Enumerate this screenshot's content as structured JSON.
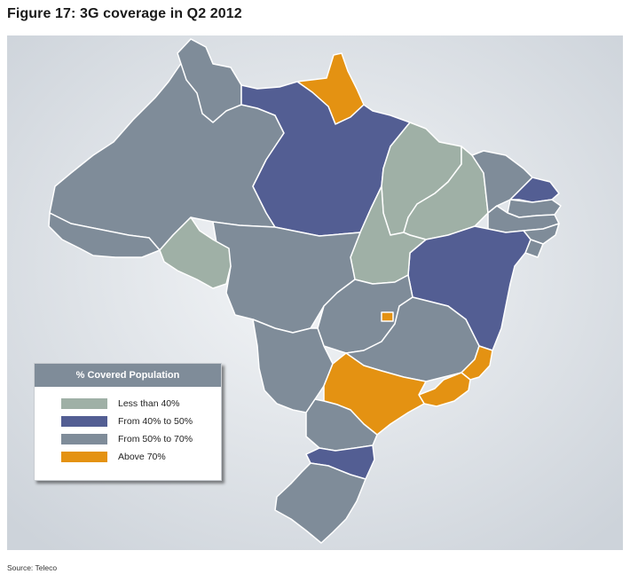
{
  "figure": {
    "title": "Figure 17: 3G coverage in Q2 2012",
    "source": "Source: Teleco"
  },
  "colors": {
    "less_than_40": "#9fb0a6",
    "from_40_to_50": "#535e93",
    "from_50_to_70": "#7f8c99",
    "above_70": "#e49212",
    "background": "#dde1e6",
    "border": "#ffffff"
  },
  "legend": {
    "title": "% Covered Population",
    "placement": "bottom-left",
    "items": [
      {
        "label": "Less than 40%",
        "color": "#9fb0a6"
      },
      {
        "label": "From 40% to 50%",
        "color": "#535e93"
      },
      {
        "label": "From 50% to 70%",
        "color": "#7f8c99"
      },
      {
        "label": "Above 70%",
        "color": "#e49212"
      }
    ]
  }
}
